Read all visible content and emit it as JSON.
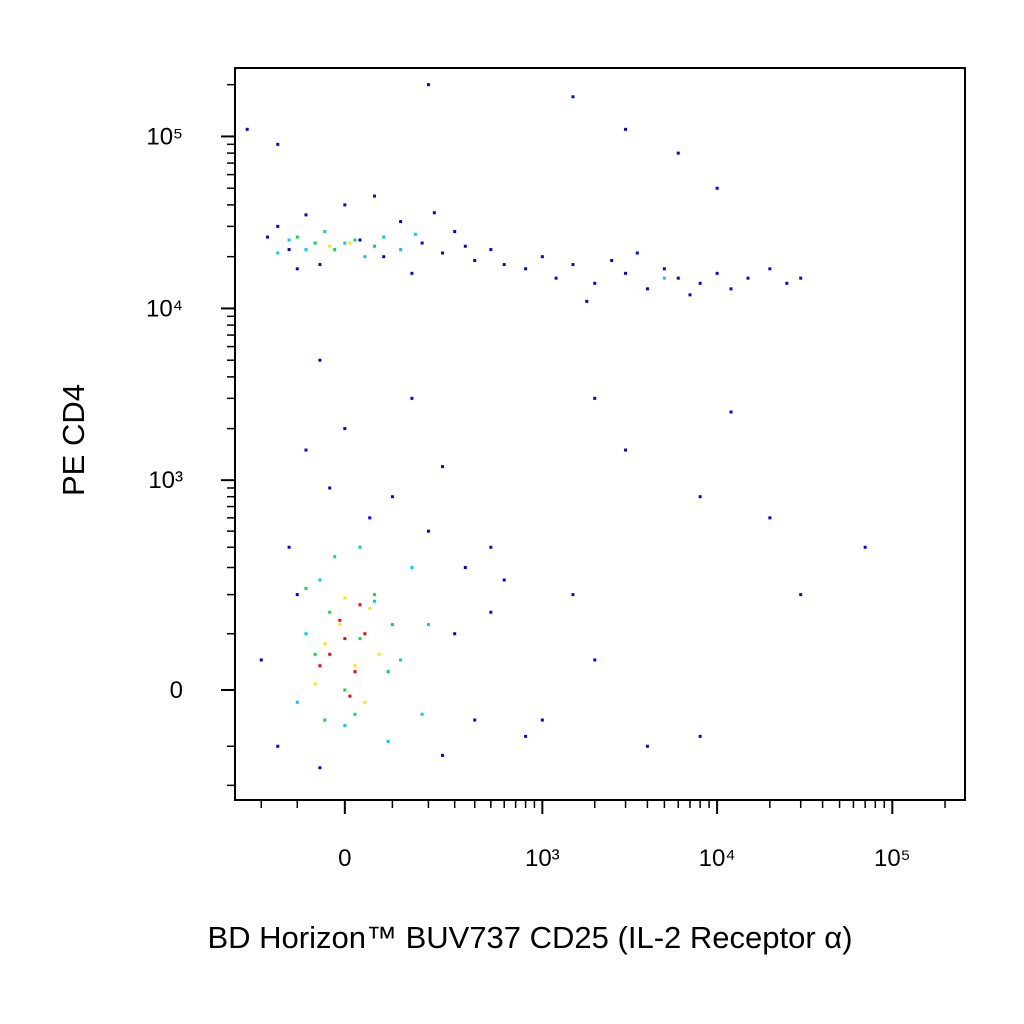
{
  "chart_data": {
    "type": "scatter",
    "xlabel": "BD Horizon™ BUV737 CD25 (IL-2 Receptor α)",
    "ylabel": "PE CD4",
    "xscale": "biexponential",
    "yscale": "biexponential",
    "xlim": [
      -300,
      260000
    ],
    "ylim": [
      -250,
      250000
    ],
    "xticks": [
      0,
      {
        "value": 1000,
        "label": "10³"
      },
      {
        "value": 10000,
        "label": "10⁴"
      },
      {
        "value": 100000,
        "label": "10⁵"
      }
    ],
    "yticks": [
      0,
      {
        "value": 1000,
        "label": "10³"
      },
      {
        "value": 10000,
        "label": "10⁴"
      },
      {
        "value": 100000,
        "label": "10⁵"
      }
    ],
    "xminorticks": [
      -200,
      -100,
      100,
      200,
      300,
      400,
      500,
      600,
      700,
      800,
      900,
      2000,
      3000,
      4000,
      5000,
      6000,
      7000,
      8000,
      9000,
      20000,
      30000,
      40000,
      50000,
      60000,
      70000,
      80000,
      90000,
      200000
    ],
    "yminorticks": [
      -200,
      -100,
      100,
      200,
      300,
      400,
      500,
      600,
      700,
      800,
      900,
      2000,
      3000,
      4000,
      5000,
      6000,
      7000,
      8000,
      9000,
      20000,
      30000,
      40000,
      50000,
      60000,
      70000,
      80000,
      90000,
      200000
    ],
    "series": [
      {
        "color": "#0000ff",
        "x": [
          -150,
          -120,
          -80,
          -50,
          0,
          30,
          80,
          120,
          180,
          250,
          300,
          400,
          -180,
          -100,
          60,
          150,
          220,
          350,
          500,
          600,
          800,
          1000,
          1200,
          1500,
          2000,
          2500,
          3000,
          4000,
          5000,
          6000,
          8000,
          10000,
          12000,
          15000,
          20000,
          25000,
          30000,
          7000,
          3500,
          1800,
          -50,
          0,
          100,
          -80,
          150,
          50,
          -30,
          250,
          2000,
          8000,
          500,
          3000,
          12000,
          -200,
          -150,
          -100,
          300,
          400,
          500,
          600,
          250,
          -50,
          800,
          1000,
          2000,
          1500,
          4000,
          8000,
          30000,
          70000,
          20000,
          -120,
          200,
          350,
          -250,
          200,
          1500,
          3000,
          6000,
          10000,
          -150
        ],
        "y": [
          30000,
          22000,
          35000,
          18000,
          40000,
          25000,
          20000,
          32000,
          24000,
          21000,
          28000,
          19000,
          26000,
          17000,
          45000,
          16000,
          36000,
          23000,
          22000,
          18000,
          17000,
          20000,
          15000,
          18000,
          14000,
          19000,
          16000,
          13000,
          17000,
          15000,
          14000,
          16000,
          13000,
          15000,
          17000,
          14000,
          15000,
          12000,
          21000,
          11000,
          5000,
          2000,
          800,
          1500,
          3000,
          600,
          900,
          1200,
          3000,
          800,
          400,
          1500,
          2500,
          50,
          -100,
          200,
          100,
          -50,
          150,
          250,
          -120,
          -150,
          -80,
          -50,
          50,
          200,
          -100,
          -80,
          200,
          400,
          600,
          400,
          500,
          300,
          110000,
          200000,
          170000,
          110000,
          80000,
          50000,
          90000
        ]
      },
      {
        "color": "#00c8ff",
        "x": [
          -120,
          -80,
          -40,
          0,
          40,
          80,
          120,
          -150,
          160,
          5000,
          -80,
          -50,
          0,
          60,
          120,
          150,
          -100,
          200,
          30,
          -20,
          180,
          90
        ],
        "y": [
          25000,
          22000,
          28000,
          24000,
          20000,
          26000,
          22000,
          21000,
          27000,
          15000,
          100,
          250,
          -60,
          180,
          50,
          300,
          -20,
          120,
          400,
          350,
          -40,
          -90
        ]
      },
      {
        "color": "#00e040",
        "x": [
          -60,
          -20,
          20,
          60,
          -100,
          -60,
          -30,
          0,
          30,
          60,
          90,
          -80,
          20,
          100,
          -40
        ],
        "y": [
          24000,
          22000,
          25000,
          23000,
          26000,
          60,
          150,
          0,
          90,
          200,
          30,
          220,
          -40,
          120,
          -50
        ]
      },
      {
        "color": "#ffe600",
        "x": [
          -30,
          10,
          -40,
          -10,
          20,
          50,
          70,
          -60,
          0,
          40
        ],
        "y": [
          23000,
          24000,
          80,
          120,
          40,
          160,
          60,
          10,
          190,
          -20
        ]
      },
      {
        "color": "#ff0000",
        "x": [
          -30,
          0,
          20,
          -10,
          40,
          10,
          -50,
          30
        ],
        "y": [
          60,
          90,
          30,
          130,
          100,
          -10,
          40,
          170
        ]
      }
    ]
  }
}
